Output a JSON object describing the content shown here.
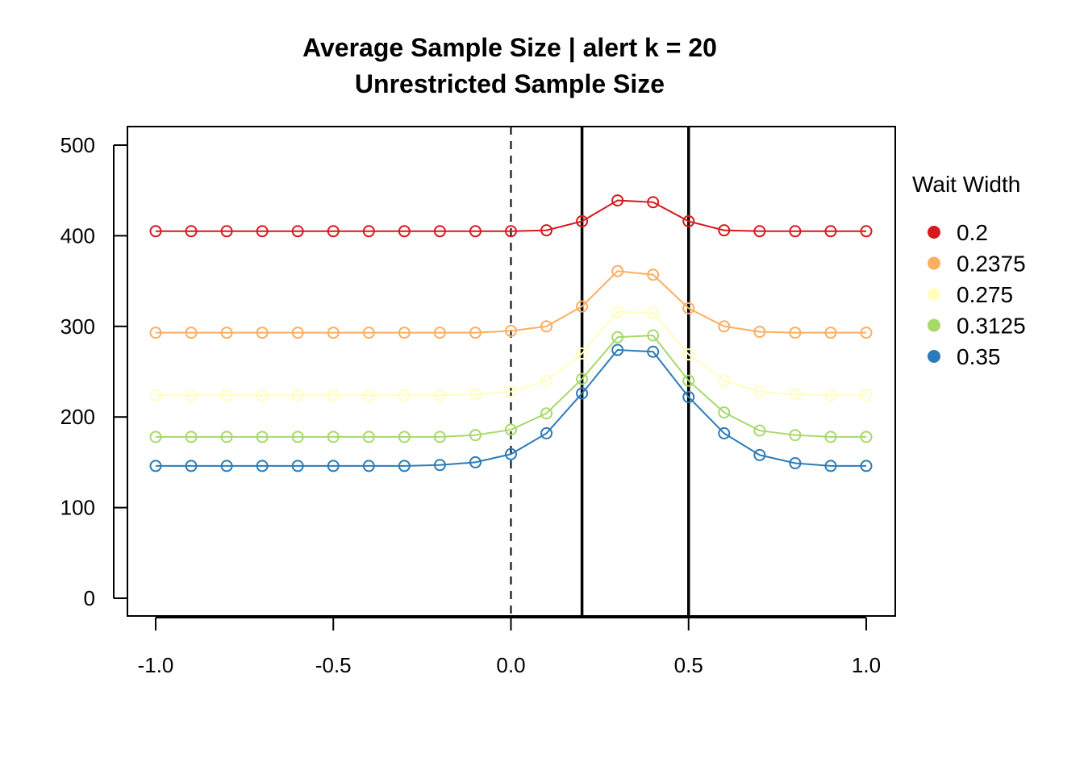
{
  "chart_data": {
    "type": "line",
    "title": "Average Sample Size | alert k = 20",
    "subtitle": "Unrestricted Sample Size",
    "xlabel": "",
    "ylabel": "",
    "xlim": [
      -1.0,
      1.0
    ],
    "ylim": [
      0,
      500
    ],
    "x_ticks": [
      -1.0,
      -0.5,
      0.0,
      0.5,
      1.0
    ],
    "x_tick_labels": [
      "-1.0",
      "-0.5",
      "0.0",
      "0.5",
      "1.0"
    ],
    "y_ticks": [
      0,
      100,
      200,
      300,
      400,
      500
    ],
    "y_tick_labels": [
      "0",
      "100",
      "200",
      "300",
      "400",
      "500"
    ],
    "grid": false,
    "reference_lines": [
      {
        "x": 0.0,
        "style": "dashed"
      },
      {
        "x": 0.2,
        "style": "solid"
      },
      {
        "x": 0.5,
        "style": "solid"
      }
    ],
    "legend": {
      "title": "Wait Width",
      "position": "right"
    },
    "x": [
      -1.0,
      -0.9,
      -0.8,
      -0.7,
      -0.6,
      -0.5,
      -0.4,
      -0.3,
      -0.2,
      -0.1,
      0.0,
      0.1,
      0.2,
      0.3,
      0.4,
      0.5,
      0.6,
      0.7,
      0.8,
      0.9,
      1.0
    ],
    "series": [
      {
        "name": "0.2",
        "color": "#d7191c",
        "values": [
          405,
          405,
          405,
          405,
          405,
          405,
          405,
          405,
          405,
          405,
          405,
          406,
          416,
          439,
          437,
          416,
          406,
          405,
          405,
          405,
          405
        ]
      },
      {
        "name": "0.2375",
        "color": "#fdae61",
        "values": [
          293,
          293,
          293,
          293,
          293,
          293,
          293,
          293,
          293,
          293,
          295,
          300,
          322,
          361,
          357,
          320,
          300,
          294,
          293,
          293,
          293
        ]
      },
      {
        "name": "0.275",
        "color": "#ffffbf",
        "values": [
          224,
          224,
          224,
          224,
          224,
          224,
          224,
          224,
          224,
          225,
          228,
          240,
          270,
          316,
          315,
          269,
          240,
          228,
          225,
          224,
          224
        ]
      },
      {
        "name": "0.3125",
        "color": "#a6d96a",
        "values": [
          178,
          178,
          178,
          178,
          178,
          178,
          178,
          178,
          178,
          180,
          186,
          204,
          242,
          288,
          290,
          240,
          205,
          185,
          180,
          178,
          178
        ]
      },
      {
        "name": "0.35",
        "color": "#2c7bb6",
        "values": [
          146,
          146,
          146,
          146,
          146,
          146,
          146,
          146,
          147,
          150,
          159,
          182,
          226,
          274,
          272,
          222,
          182,
          158,
          149,
          146,
          146
        ]
      }
    ]
  }
}
